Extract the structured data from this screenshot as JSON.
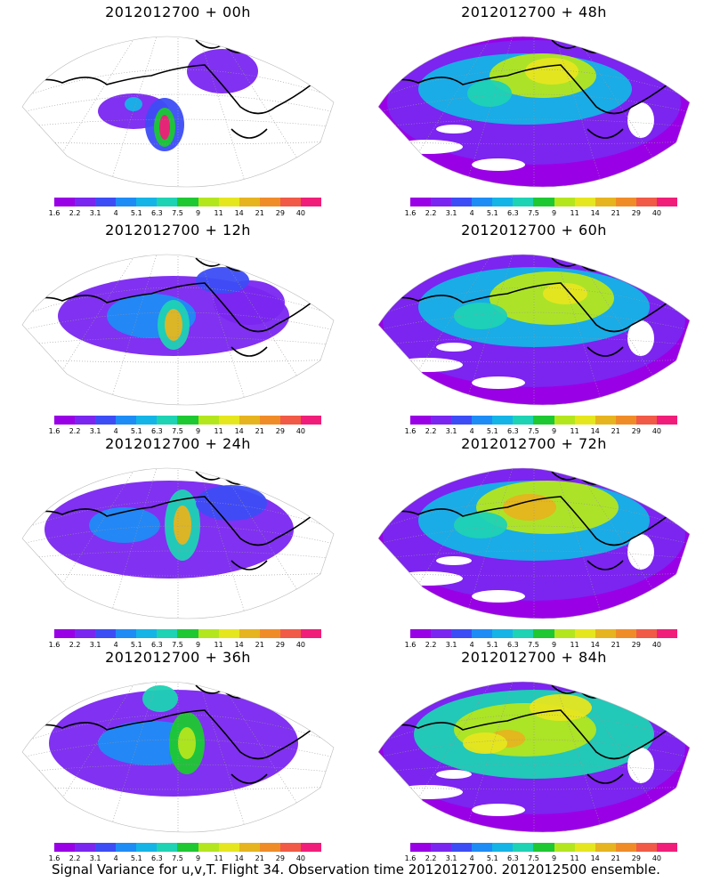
{
  "caption": "Signal Variance for u,v,T. Flight 34. Observation time 2012012700. 2012012500 ensemble.",
  "colorbar": {
    "ticks": [
      "1.6",
      "2.2",
      "3.1",
      "4",
      "5.1",
      "6.3",
      "7.5",
      "9",
      "11",
      "14",
      "21",
      "29",
      "40"
    ],
    "colors": [
      "#9a00e6",
      "#7a26f0",
      "#3c4df5",
      "#1e8cf5",
      "#14b4e6",
      "#1ed2b4",
      "#1ec832",
      "#b4e61e",
      "#e6e61e",
      "#e6b41e",
      "#f08c28",
      "#f05a46",
      "#f01e7a"
    ]
  },
  "panels": [
    {
      "title": "2012012700 + 00h",
      "col": 0,
      "row": 0
    },
    {
      "title": "2012012700 + 12h",
      "col": 0,
      "row": 1
    },
    {
      "title": "2012012700 + 24h",
      "col": 0,
      "row": 2
    },
    {
      "title": "2012012700 + 36h",
      "col": 0,
      "row": 3
    },
    {
      "title": "2012012700 + 48h",
      "col": 1,
      "row": 0
    },
    {
      "title": "2012012700 + 60h",
      "col": 1,
      "row": 1
    },
    {
      "title": "2012012700 + 72h",
      "col": 1,
      "row": 2
    },
    {
      "title": "2012012700 + 84h",
      "col": 1,
      "row": 3
    }
  ]
}
